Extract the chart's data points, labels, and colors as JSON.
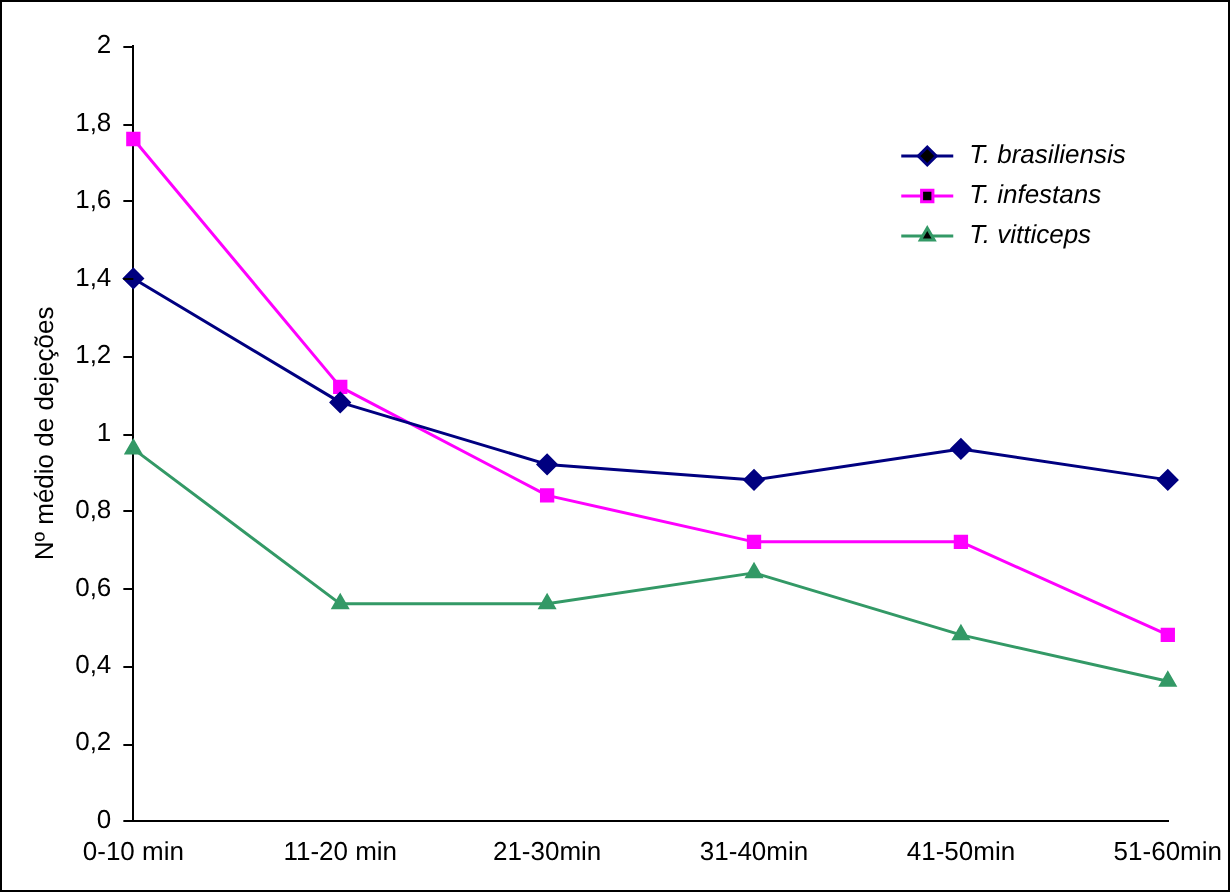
{
  "chart_data": {
    "type": "line",
    "ylabel": "Nº médio de dejeções",
    "categories": [
      "0-10 min",
      "11-20 min",
      "21-30min",
      "31-40min",
      "41-50min",
      "51-60min"
    ],
    "series": [
      {
        "name": "T. brasiliensis",
        "color": "#000080",
        "marker": "diamond",
        "values": [
          1.4,
          1.08,
          0.92,
          0.88,
          0.96,
          0.88
        ]
      },
      {
        "name": "T. infestans",
        "color": "#ff00ff",
        "marker": "square",
        "values": [
          1.76,
          1.12,
          0.84,
          0.72,
          0.72,
          0.48
        ]
      },
      {
        "name": "T. vitticeps",
        "color": "#339966",
        "marker": "triangle",
        "values": [
          0.96,
          0.56,
          0.56,
          0.64,
          0.48,
          0.36
        ]
      }
    ],
    "ylim": [
      0,
      2
    ],
    "yticks": [
      {
        "value": 0,
        "label": "0"
      },
      {
        "value": 0.2,
        "label": "0,2"
      },
      {
        "value": 0.4,
        "label": "0,4"
      },
      {
        "value": 0.6,
        "label": "0,6"
      },
      {
        "value": 0.8,
        "label": "0,8"
      },
      {
        "value": 1,
        "label": "1"
      },
      {
        "value": 1.2,
        "label": "1,2"
      },
      {
        "value": 1.4,
        "label": "1,4"
      },
      {
        "value": 1.6,
        "label": "1,6"
      },
      {
        "value": 1.8,
        "label": "1,8"
      },
      {
        "value": 2,
        "label": "2"
      }
    ],
    "grid": false,
    "legend": "top right",
    "line_style": "solid"
  }
}
